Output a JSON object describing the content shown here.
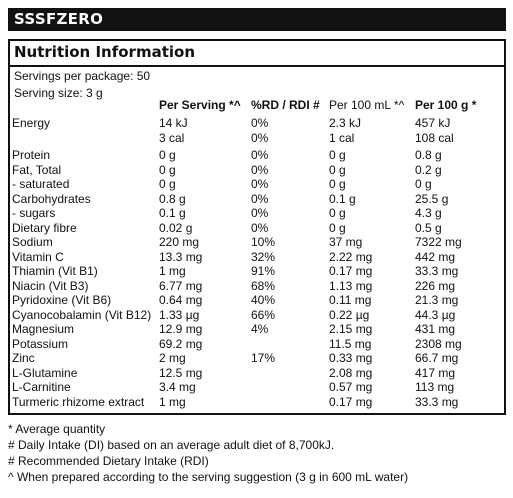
{
  "brand": "SSSFZERO",
  "title": "Nutrition Information",
  "servings_per_package": "Servings per package: 50",
  "serving_size": "Serving size: 3 g",
  "columns": {
    "per_serving": "Per Serving *^",
    "rdi": "%RD / RDI #",
    "per_100ml": "Per 100 mL *^",
    "per_100g": "Per 100 g *"
  },
  "rows": [
    {
      "name": "Energy",
      "per_serving": "14 kJ",
      "rdi": "0%",
      "per_100ml": "2.3 kJ",
      "per_100g": "457 kJ",
      "per_serving_2": "3 cal",
      "rdi_2": "0%",
      "per_100ml_2": "1 cal",
      "per_100g_2": "108 cal"
    },
    {
      "name": "Protein",
      "per_serving": "0 g",
      "rdi": "0%",
      "per_100ml": "0 g",
      "per_100g": "0.8 g"
    },
    {
      "name": "Fat, Total",
      "per_serving": "0 g",
      "rdi": "0%",
      "per_100ml": "0 g",
      "per_100g": "0.2 g"
    },
    {
      "name": " - saturated",
      "per_serving": "0 g",
      "rdi": "0%",
      "per_100ml": "0 g",
      "per_100g": "0 g"
    },
    {
      "name": "Carbohydrates",
      "per_serving": "0.8 g",
      "rdi": "0%",
      "per_100ml": "0.1 g",
      "per_100g": "25.5 g"
    },
    {
      "name": " - sugars",
      "per_serving": "0.1 g",
      "rdi": "0%",
      "per_100ml": "0 g",
      "per_100g": "4.3 g"
    },
    {
      "name": "Dietary fibre",
      "per_serving": "0.02 g",
      "rdi": "0%",
      "per_100ml": "0 g",
      "per_100g": "0.5 g"
    },
    {
      "name": "Sodium",
      "per_serving": "220 mg",
      "rdi": "10%",
      "per_100ml": "37 mg",
      "per_100g": "7322 mg"
    },
    {
      "name": "Vitamin C",
      "per_serving": "13.3 mg",
      "rdi": "32%",
      "per_100ml": "2.22 mg",
      "per_100g": "442 mg"
    },
    {
      "name": "Thiamin (Vit B1)",
      "per_serving": "1 mg",
      "rdi": "91%",
      "per_100ml": "0.17 mg",
      "per_100g": "33.3 mg"
    },
    {
      "name": "Niacin (Vit B3)",
      "per_serving": "6.77 mg",
      "rdi": "68%",
      "per_100ml": "1.13 mg",
      "per_100g": "226 mg"
    },
    {
      "name": "Pyridoxine (Vit B6)",
      "per_serving": "0.64 mg",
      "rdi": "40%",
      "per_100ml": "0.11 mg",
      "per_100g": "21.3 mg"
    },
    {
      "name": "Cyanocobalamin (Vit B12)",
      "per_serving": "1.33 µg",
      "rdi": "66%",
      "per_100ml": "0.22 µg",
      "per_100g": "44.3 µg"
    },
    {
      "name": "Magnesium",
      "per_serving": "12.9 mg",
      "rdi": "4%",
      "per_100ml": "2.15 mg",
      "per_100g": "431 mg"
    },
    {
      "name": "Potassium",
      "per_serving": "69.2 mg",
      "rdi": "",
      "per_100ml": "11.5 mg",
      "per_100g": "2308 mg"
    },
    {
      "name": "Zinc",
      "per_serving": "2 mg",
      "rdi": "17%",
      "per_100ml": "0.33 mg",
      "per_100g": "66.7 mg"
    },
    {
      "name": "L-Glutamine",
      "per_serving": "12.5 mg",
      "rdi": "",
      "per_100ml": "2.08 mg",
      "per_100g": "417 mg"
    },
    {
      "name": "L-Carnitine",
      "per_serving": "3.4 mg",
      "rdi": "",
      "per_100ml": "0.57 mg",
      "per_100g": "113 mg"
    },
    {
      "name": "Turmeric rhizome extract",
      "per_serving": "1 mg",
      "rdi": "",
      "per_100ml": "0.17 mg",
      "per_100g": "33.3 mg"
    }
  ],
  "footnotes": [
    "* Average quantity",
    "# Daily Intake (DI) based on an average adult diet of 8,700kJ.",
    "# Recommended Dietary Intake (RDI)",
    "^ When prepared according to the serving suggestion (3 g in 600 mL water)"
  ]
}
